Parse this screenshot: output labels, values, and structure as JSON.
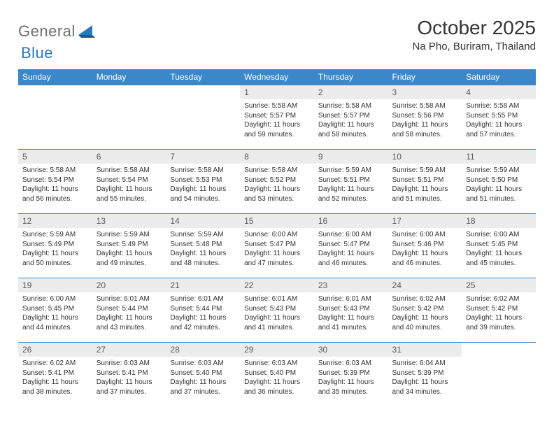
{
  "brand": {
    "name_a": "General",
    "name_b": "Blue"
  },
  "title": "October 2025",
  "location": "Na Pho, Buriram, Thailand",
  "colors": {
    "header_bg": "#3b87c8",
    "header_text": "#ffffff",
    "daynum_bg": "#ececec",
    "border": "#3b87c8",
    "logo_gray": "#6f6f6f",
    "logo_blue": "#2b77b8"
  },
  "weekday_labels": [
    "Sunday",
    "Monday",
    "Tuesday",
    "Wednesday",
    "Thursday",
    "Friday",
    "Saturday"
  ],
  "labels": {
    "sunrise": "Sunrise:",
    "sunset": "Sunset:",
    "daylight": "Daylight:"
  },
  "weeks": [
    [
      null,
      null,
      null,
      {
        "n": "1",
        "sr": "5:58 AM",
        "ss": "5:57 PM",
        "dl": "11 hours and 59 minutes."
      },
      {
        "n": "2",
        "sr": "5:58 AM",
        "ss": "5:57 PM",
        "dl": "11 hours and 58 minutes."
      },
      {
        "n": "3",
        "sr": "5:58 AM",
        "ss": "5:56 PM",
        "dl": "11 hours and 58 minutes."
      },
      {
        "n": "4",
        "sr": "5:58 AM",
        "ss": "5:55 PM",
        "dl": "11 hours and 57 minutes."
      }
    ],
    [
      {
        "n": "5",
        "sr": "5:58 AM",
        "ss": "5:54 PM",
        "dl": "11 hours and 56 minutes."
      },
      {
        "n": "6",
        "sr": "5:58 AM",
        "ss": "5:54 PM",
        "dl": "11 hours and 55 minutes."
      },
      {
        "n": "7",
        "sr": "5:58 AM",
        "ss": "5:53 PM",
        "dl": "11 hours and 54 minutes."
      },
      {
        "n": "8",
        "sr": "5:58 AM",
        "ss": "5:52 PM",
        "dl": "11 hours and 53 minutes."
      },
      {
        "n": "9",
        "sr": "5:59 AM",
        "ss": "5:51 PM",
        "dl": "11 hours and 52 minutes."
      },
      {
        "n": "10",
        "sr": "5:59 AM",
        "ss": "5:51 PM",
        "dl": "11 hours and 51 minutes."
      },
      {
        "n": "11",
        "sr": "5:59 AM",
        "ss": "5:50 PM",
        "dl": "11 hours and 51 minutes."
      }
    ],
    [
      {
        "n": "12",
        "sr": "5:59 AM",
        "ss": "5:49 PM",
        "dl": "11 hours and 50 minutes."
      },
      {
        "n": "13",
        "sr": "5:59 AM",
        "ss": "5:49 PM",
        "dl": "11 hours and 49 minutes."
      },
      {
        "n": "14",
        "sr": "5:59 AM",
        "ss": "5:48 PM",
        "dl": "11 hours and 48 minutes."
      },
      {
        "n": "15",
        "sr": "6:00 AM",
        "ss": "5:47 PM",
        "dl": "11 hours and 47 minutes."
      },
      {
        "n": "16",
        "sr": "6:00 AM",
        "ss": "5:47 PM",
        "dl": "11 hours and 46 minutes."
      },
      {
        "n": "17",
        "sr": "6:00 AM",
        "ss": "5:46 PM",
        "dl": "11 hours and 46 minutes."
      },
      {
        "n": "18",
        "sr": "6:00 AM",
        "ss": "5:45 PM",
        "dl": "11 hours and 45 minutes."
      }
    ],
    [
      {
        "n": "19",
        "sr": "6:00 AM",
        "ss": "5:45 PM",
        "dl": "11 hours and 44 minutes."
      },
      {
        "n": "20",
        "sr": "6:01 AM",
        "ss": "5:44 PM",
        "dl": "11 hours and 43 minutes."
      },
      {
        "n": "21",
        "sr": "6:01 AM",
        "ss": "5:44 PM",
        "dl": "11 hours and 42 minutes."
      },
      {
        "n": "22",
        "sr": "6:01 AM",
        "ss": "5:43 PM",
        "dl": "11 hours and 41 minutes."
      },
      {
        "n": "23",
        "sr": "6:01 AM",
        "ss": "5:43 PM",
        "dl": "11 hours and 41 minutes."
      },
      {
        "n": "24",
        "sr": "6:02 AM",
        "ss": "5:42 PM",
        "dl": "11 hours and 40 minutes."
      },
      {
        "n": "25",
        "sr": "6:02 AM",
        "ss": "5:42 PM",
        "dl": "11 hours and 39 minutes."
      }
    ],
    [
      {
        "n": "26",
        "sr": "6:02 AM",
        "ss": "5:41 PM",
        "dl": "11 hours and 38 minutes."
      },
      {
        "n": "27",
        "sr": "6:03 AM",
        "ss": "5:41 PM",
        "dl": "11 hours and 37 minutes."
      },
      {
        "n": "28",
        "sr": "6:03 AM",
        "ss": "5:40 PM",
        "dl": "11 hours and 37 minutes."
      },
      {
        "n": "29",
        "sr": "6:03 AM",
        "ss": "5:40 PM",
        "dl": "11 hours and 36 minutes."
      },
      {
        "n": "30",
        "sr": "6:03 AM",
        "ss": "5:39 PM",
        "dl": "11 hours and 35 minutes."
      },
      {
        "n": "31",
        "sr": "6:04 AM",
        "ss": "5:39 PM",
        "dl": "11 hours and 34 minutes."
      },
      null
    ]
  ]
}
